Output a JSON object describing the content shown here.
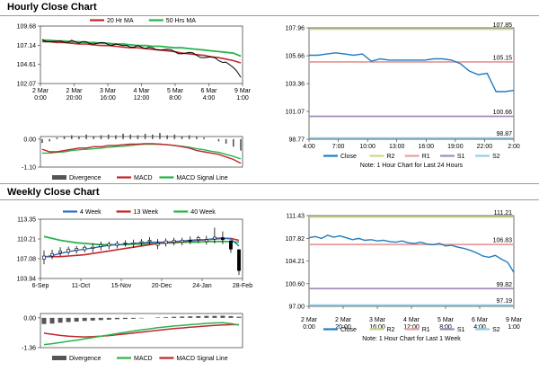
{
  "sections": {
    "hourly_title": "Hourly Close Chart",
    "weekly_title": "Weekly Close Chart"
  },
  "chart_data": [
    {
      "id": "hourly_price",
      "type": "line",
      "legend": [
        "20 Hr MA",
        "50 Hrs MA"
      ],
      "colors": {
        "close": "#000000",
        "ma20": "#c0272d",
        "ma50": "#2ab34b"
      },
      "x_labels": [
        "2 Mar\n0:00",
        "2 Mar\n20:00",
        "3 Mar\n16:00",
        "4 Mar\n12:00",
        "5 Mar\n8:00",
        "6 Mar\n4:00",
        "9 Mar\n1:00"
      ],
      "y_ticks": [
        "109.68",
        "107.14",
        "104.61",
        "102.07"
      ],
      "ylim": [
        102.07,
        109.68
      ],
      "close": [
        107.9,
        107.6,
        107.7,
        107.5,
        107.8,
        107.4,
        107.6,
        107.3,
        107.5,
        107.2,
        107.3,
        107.1,
        106.9,
        107.1,
        106.7,
        106.8,
        106.5,
        106.6,
        106.3,
        106.0,
        106.2,
        105.8,
        105.5,
        105.6,
        105.1,
        104.9,
        104.2,
        102.9
      ],
      "ma20": [
        107.6,
        107.6,
        107.5,
        107.5,
        107.4,
        107.3,
        107.3,
        107.2,
        107.1,
        107.1,
        107.0,
        106.9,
        106.8,
        106.8,
        106.7,
        106.6,
        106.5,
        106.4,
        106.3,
        106.1,
        106.0,
        105.9,
        105.8,
        105.6,
        105.5,
        105.3,
        105.1,
        104.8
      ],
      "ma50": [
        107.8,
        107.8,
        107.7,
        107.7,
        107.6,
        107.6,
        107.5,
        107.5,
        107.4,
        107.4,
        107.3,
        107.3,
        107.2,
        107.1,
        107.1,
        107.0,
        107.0,
        106.9,
        106.8,
        106.8,
        106.7,
        106.6,
        106.5,
        106.4,
        106.3,
        106.2,
        106.1,
        105.7
      ]
    },
    {
      "id": "hourly_macd",
      "type": "line",
      "legend": [
        "Divergence",
        "MACD",
        "MACD Signal Line"
      ],
      "colors": {
        "divergence": "#555555",
        "macd": "#c0272d",
        "signal": "#2ab34b"
      },
      "y_ticks": [
        "0.00",
        "-1.10"
      ],
      "ylim": [
        -1.1,
        0.1
      ],
      "divergence": [
        -0.05,
        -0.03,
        0.02,
        0.04,
        0.05,
        0.03,
        0.06,
        0.04,
        0.05,
        0.06,
        0.05,
        0.07,
        0.06,
        0.05,
        0.07,
        0.06,
        0.08,
        0.05,
        0.06,
        0.04,
        0.05,
        0.03,
        0.02,
        0.0,
        -0.03,
        -0.06,
        -0.1,
        -0.15
      ],
      "macd": [
        -0.4,
        -0.5,
        -0.5,
        -0.45,
        -0.4,
        -0.35,
        -0.35,
        -0.3,
        -0.3,
        -0.25,
        -0.25,
        -0.22,
        -0.2,
        -0.2,
        -0.18,
        -0.18,
        -0.2,
        -0.22,
        -0.25,
        -0.3,
        -0.35,
        -0.45,
        -0.5,
        -0.55,
        -0.6,
        -0.7,
        -0.8,
        -0.95
      ],
      "signal": [
        -0.55,
        -0.55,
        -0.52,
        -0.5,
        -0.45,
        -0.42,
        -0.4,
        -0.38,
        -0.35,
        -0.32,
        -0.3,
        -0.28,
        -0.25,
        -0.22,
        -0.2,
        -0.2,
        -0.2,
        -0.22,
        -0.25,
        -0.28,
        -0.32,
        -0.38,
        -0.42,
        -0.48,
        -0.52,
        -0.6,
        -0.68,
        -0.78
      ]
    },
    {
      "id": "hourly_pivot",
      "type": "line",
      "note": "Note: 1 Hour Chart for Last 24 Hours",
      "legend": [
        "Close",
        "R2",
        "R1",
        "S1",
        "S2"
      ],
      "colors": {
        "close": "#1f7dbf",
        "r2": "#c7d98a",
        "r1": "#e9a0a0",
        "s1": "#a38db7",
        "s2": "#8fd0e6"
      },
      "x_labels": [
        "4:00",
        "7:00",
        "10:00",
        "13:00",
        "16:00",
        "19:00",
        "22:00",
        "2:00"
      ],
      "y_ticks": [
        "107.96",
        "105.66",
        "103.36",
        "101.07",
        "98.77"
      ],
      "ylim": [
        98.77,
        107.96
      ],
      "levels": {
        "r2": 107.85,
        "r1": 105.15,
        "s1": 100.66,
        "s2": 98.87
      },
      "level_labels": {
        "r2": "107.85",
        "r1": "105.15",
        "s1": "100.66",
        "s2": "98.87"
      },
      "close": [
        105.7,
        105.7,
        105.8,
        105.9,
        105.8,
        105.7,
        105.8,
        105.2,
        105.4,
        105.3,
        105.3,
        105.3,
        105.3,
        105.3,
        105.4,
        105.4,
        105.3,
        105.0,
        104.4,
        104.1,
        104.2,
        102.7,
        102.7,
        102.8
      ]
    },
    {
      "id": "weekly_price",
      "type": "line",
      "legend": [
        "4 Week",
        "13 Week",
        "40 Week"
      ],
      "colors": {
        "wk4": "#2f6fbf",
        "wk13": "#c0272d",
        "wk40": "#2ab34b",
        "candle": "#000000"
      },
      "x_labels": [
        "6-Sep",
        "11-Oct",
        "15-Nov",
        "20-Dec",
        "24-Jan",
        "28-Feb"
      ],
      "y_ticks": [
        "113.35",
        "110.21",
        "107.08",
        "103.94"
      ],
      "ylim": [
        103.94,
        113.35
      ],
      "candles": [
        {
          "o": 107.0,
          "c": 107.5,
          "h": 108.4,
          "l": 106.2
        },
        {
          "o": 107.5,
          "c": 107.9,
          "h": 108.5,
          "l": 107.0
        },
        {
          "o": 108.0,
          "c": 108.3,
          "h": 108.9,
          "l": 107.5
        },
        {
          "o": 108.1,
          "c": 108.6,
          "h": 109.0,
          "l": 107.7
        },
        {
          "o": 108.4,
          "c": 108.7,
          "h": 109.1,
          "l": 107.9
        },
        {
          "o": 108.5,
          "c": 108.9,
          "h": 109.2,
          "l": 108.1
        },
        {
          "o": 108.7,
          "c": 108.9,
          "h": 109.5,
          "l": 108.1
        },
        {
          "o": 109.0,
          "c": 109.3,
          "h": 109.8,
          "l": 108.4
        },
        {
          "o": 109.1,
          "c": 109.4,
          "h": 109.8,
          "l": 108.6
        },
        {
          "o": 109.2,
          "c": 109.5,
          "h": 109.9,
          "l": 108.7
        },
        {
          "o": 109.5,
          "c": 109.6,
          "h": 110.0,
          "l": 109.0
        },
        {
          "o": 109.4,
          "c": 109.6,
          "h": 110.1,
          "l": 108.8
        },
        {
          "o": 109.6,
          "c": 109.8,
          "h": 110.2,
          "l": 109.1
        },
        {
          "o": 109.8,
          "c": 110.0,
          "h": 110.5,
          "l": 109.3
        },
        {
          "o": 109.2,
          "c": 109.5,
          "h": 110.2,
          "l": 108.6
        },
        {
          "o": 109.5,
          "c": 109.9,
          "h": 110.3,
          "l": 109.0
        },
        {
          "o": 109.7,
          "c": 110.0,
          "h": 110.4,
          "l": 109.2
        },
        {
          "o": 109.7,
          "c": 110.0,
          "h": 110.4,
          "l": 109.2
        },
        {
          "o": 110.0,
          "c": 109.9,
          "h": 110.6,
          "l": 109.4
        },
        {
          "o": 110.1,
          "c": 110.4,
          "h": 110.7,
          "l": 109.6
        },
        {
          "o": 109.8,
          "c": 110.1,
          "h": 110.7,
          "l": 109.3
        },
        {
          "o": 110.2,
          "c": 110.5,
          "h": 112.0,
          "l": 109.5
        },
        {
          "o": 110.4,
          "c": 110.1,
          "h": 111.4,
          "l": 109.4
        },
        {
          "o": 109.9,
          "c": 108.6,
          "h": 110.0,
          "l": 108.0
        },
        {
          "o": 108.5,
          "c": 105.2,
          "h": 108.6,
          "l": 104.5
        }
      ],
      "wk4": [
        107.3,
        107.6,
        107.9,
        108.2,
        108.4,
        108.6,
        108.8,
        109.0,
        109.2,
        109.3,
        109.4,
        109.5,
        109.6,
        109.7,
        109.7,
        109.7,
        109.8,
        109.9,
        110.0,
        110.1,
        110.1,
        110.3,
        110.4,
        110.2,
        109.1
      ],
      "wk13": [
        107.4,
        107.4,
        107.4,
        107.5,
        107.6,
        107.7,
        107.9,
        108.1,
        108.3,
        108.5,
        108.7,
        108.9,
        109.1,
        109.3,
        109.5,
        109.6,
        109.7,
        109.8,
        109.9,
        110.0,
        110.1,
        110.2,
        110.3,
        110.3,
        110.0
      ],
      "wk40": [
        110.6,
        110.3,
        110.0,
        109.8,
        109.6,
        109.5,
        109.4,
        109.3,
        109.3,
        109.3,
        109.3,
        109.4,
        109.4,
        109.5,
        109.5,
        109.6,
        109.6,
        109.7,
        109.7,
        109.7,
        109.8,
        109.8,
        109.8,
        109.8,
        109.7
      ]
    },
    {
      "id": "weekly_macd",
      "type": "line",
      "legend": [
        "Divergence",
        "MACD",
        "MACD Signal Line"
      ],
      "colors": {
        "divergence": "#555555",
        "macd": "#2ab34b",
        "signal": "#c0272d"
      },
      "y_ticks": [
        "0.00",
        "-1.36"
      ],
      "ylim": [
        -1.36,
        0.2
      ],
      "divergence": [
        -0.28,
        -0.26,
        -0.22,
        -0.19,
        -0.17,
        -0.14,
        -0.12,
        -0.1,
        -0.08,
        -0.06,
        -0.05,
        -0.04,
        -0.02,
        0.0,
        0.02,
        0.03,
        0.05,
        0.06,
        0.07,
        0.08,
        0.09,
        0.09,
        0.1,
        0.08,
        0.05
      ],
      "macd": [
        -1.22,
        -1.18,
        -1.12,
        -1.07,
        -1.02,
        -0.96,
        -0.9,
        -0.84,
        -0.78,
        -0.72,
        -0.66,
        -0.6,
        -0.55,
        -0.5,
        -0.45,
        -0.41,
        -0.37,
        -0.34,
        -0.31,
        -0.28,
        -0.25,
        -0.23,
        -0.22,
        -0.26,
        -0.33
      ],
      "signal": [
        -0.7,
        -0.75,
        -0.8,
        -0.84,
        -0.86,
        -0.87,
        -0.86,
        -0.84,
        -0.81,
        -0.77,
        -0.73,
        -0.69,
        -0.65,
        -0.61,
        -0.57,
        -0.53,
        -0.49,
        -0.46,
        -0.43,
        -0.4,
        -0.37,
        -0.34,
        -0.32,
        -0.31,
        -0.31
      ]
    },
    {
      "id": "weekly_pivot",
      "type": "line",
      "note": "Note: 1 Hour Chart for Last 1 Week",
      "legend": [
        "Close",
        "R2",
        "R1",
        "S1",
        "S2"
      ],
      "colors": {
        "close": "#1f7dbf",
        "r2": "#c7d98a",
        "r1": "#e9a0a0",
        "s1": "#a38db7",
        "s2": "#8fd0e6"
      },
      "x_labels": [
        "2 Mar\n0:00",
        "2 Mar\n20:00",
        "3 Mar\n16:00",
        "4 Mar\n12:00",
        "5 Mar\n8:00",
        "6 Mar\n4:00",
        "9 Mar\n1:00"
      ],
      "y_ticks": [
        "111.43",
        "107.82",
        "104.21",
        "100.60",
        "97.00"
      ],
      "ylim": [
        97.0,
        111.43
      ],
      "levels": {
        "r2": 111.21,
        "r1": 106.83,
        "s1": 99.82,
        "s2": 97.19
      },
      "level_labels": {
        "r2": "111.21",
        "r1": "106.83",
        "s1": "99.82",
        "s2": "97.19"
      },
      "close": [
        107.9,
        108.1,
        107.8,
        108.3,
        108.0,
        108.2,
        107.9,
        107.6,
        107.8,
        107.5,
        107.6,
        107.4,
        107.5,
        107.3,
        107.2,
        107.4,
        107.1,
        107.0,
        107.2,
        106.9,
        106.8,
        107.0,
        106.6,
        106.7,
        106.4,
        106.2,
        105.9,
        105.5,
        105.0,
        104.8,
        105.1,
        104.5,
        104.0,
        102.4
      ]
    }
  ]
}
